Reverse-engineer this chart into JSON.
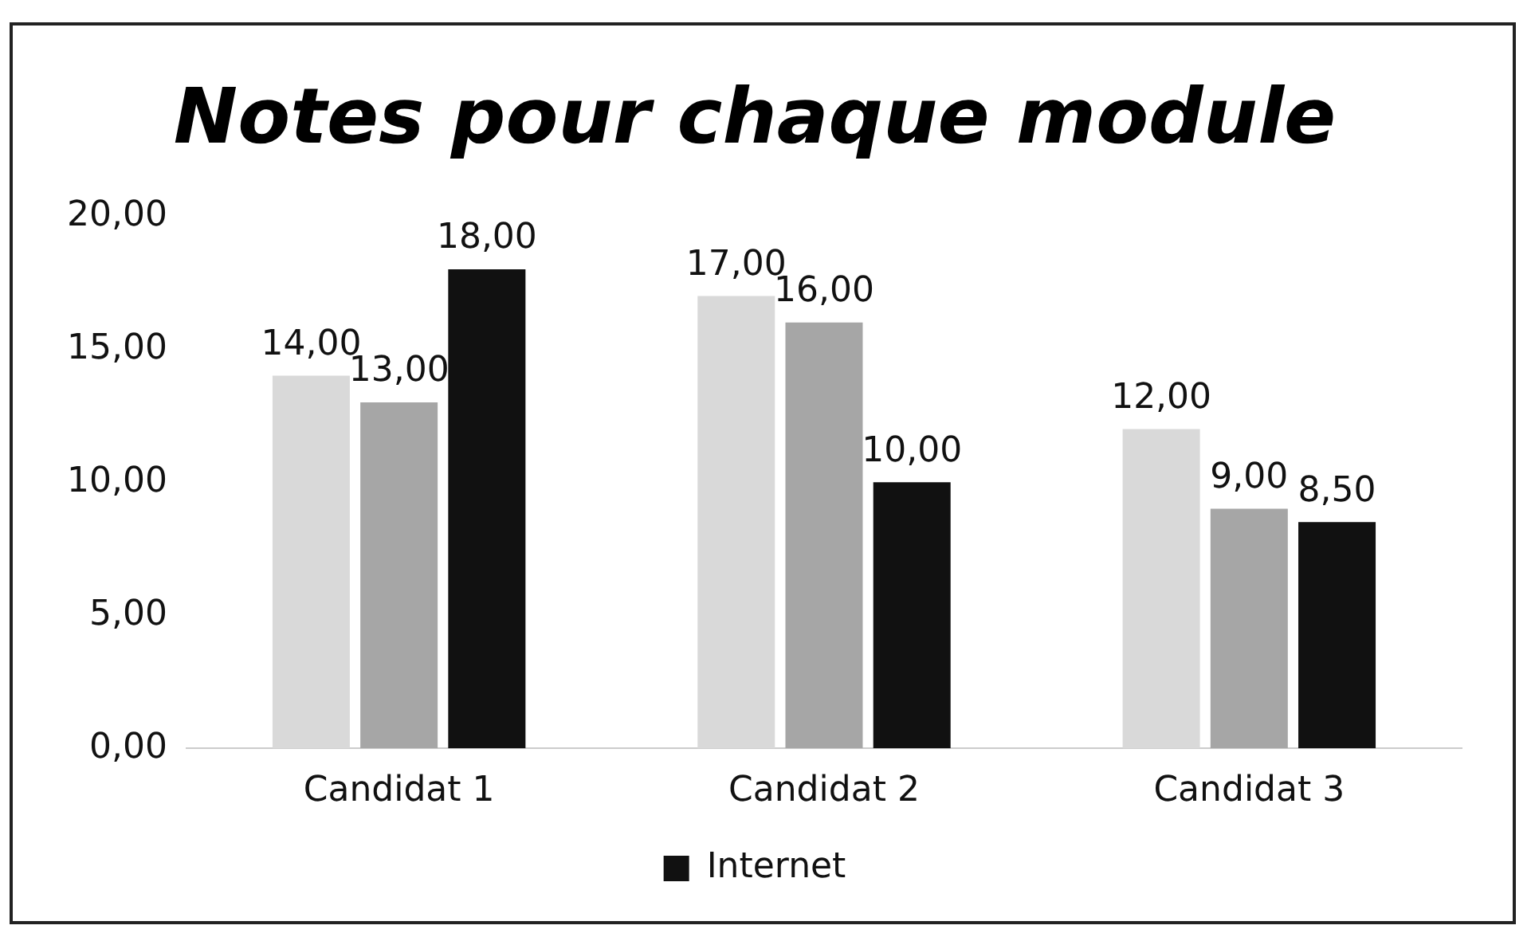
{
  "chart_data": {
    "type": "bar",
    "title": "Notes pour chaque module",
    "categories": [
      "Candidat 1",
      "Candidat 2",
      "Candidat 3"
    ],
    "series": [
      {
        "color": "#d9d9d9",
        "values": [
          14,
          17,
          12
        ],
        "value_labels": [
          "14,00",
          "17,00",
          "12,00"
        ]
      },
      {
        "color": "#a6a6a6",
        "values": [
          13,
          16,
          9
        ],
        "value_labels": [
          "13,00",
          "16,00",
          "9,00"
        ]
      },
      {
        "name": "Internet",
        "color": "#111111",
        "values": [
          18,
          10,
          8.5
        ],
        "value_labels": [
          "18,00",
          "10,00",
          "8,50"
        ]
      }
    ],
    "ylim": [
      0,
      20
    ],
    "yticks": [
      {
        "value": 0,
        "label": "0,00"
      },
      {
        "value": 5,
        "label": "5,00"
      },
      {
        "value": 10,
        "label": "10,00"
      },
      {
        "value": 15,
        "label": "15,00"
      },
      {
        "value": 20,
        "label": "20,00"
      }
    ],
    "grid": false,
    "legend": "bottom"
  }
}
